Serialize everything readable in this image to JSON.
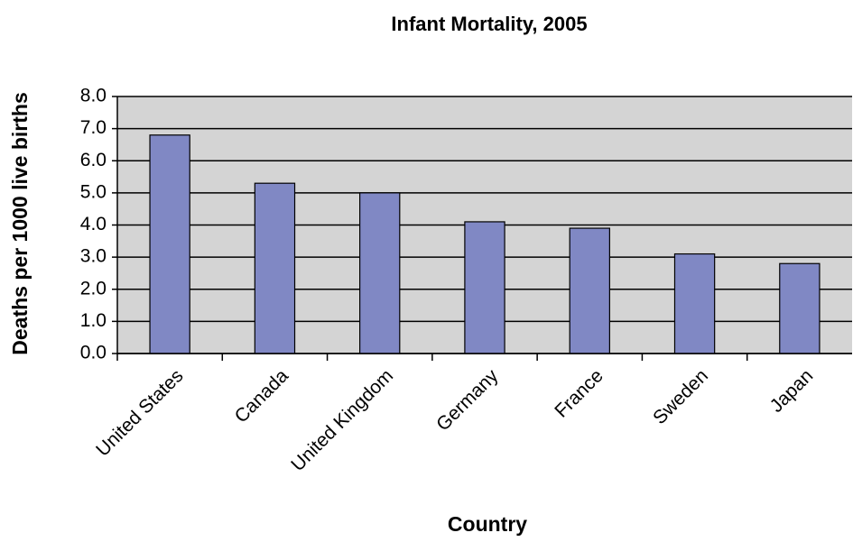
{
  "chart_data": {
    "type": "bar",
    "title": "Infant Mortality, 2005",
    "x_label": "Country",
    "y_label": "Deaths per 1000 live births",
    "categories": [
      "United States",
      "Canada",
      "United Kingdom",
      "Germany",
      "France",
      "Sweden",
      "Japan"
    ],
    "values": [
      6.8,
      5.3,
      5.0,
      4.1,
      3.9,
      3.1,
      2.8
    ],
    "color": "#8088c4",
    "ylim": [
      0,
      8
    ],
    "yticks": [
      {
        "value": 0,
        "label": "0.0"
      },
      {
        "value": 1,
        "label": "1.0"
      },
      {
        "value": 2,
        "label": "2.0"
      },
      {
        "value": 3,
        "label": "3.0"
      },
      {
        "value": 4,
        "label": "4.0"
      },
      {
        "value": 5,
        "label": "5.0"
      },
      {
        "value": 6,
        "label": "6.0"
      },
      {
        "value": 7,
        "label": "7.0"
      },
      {
        "value": 8,
        "label": "8.0"
      }
    ],
    "grid": true
  }
}
